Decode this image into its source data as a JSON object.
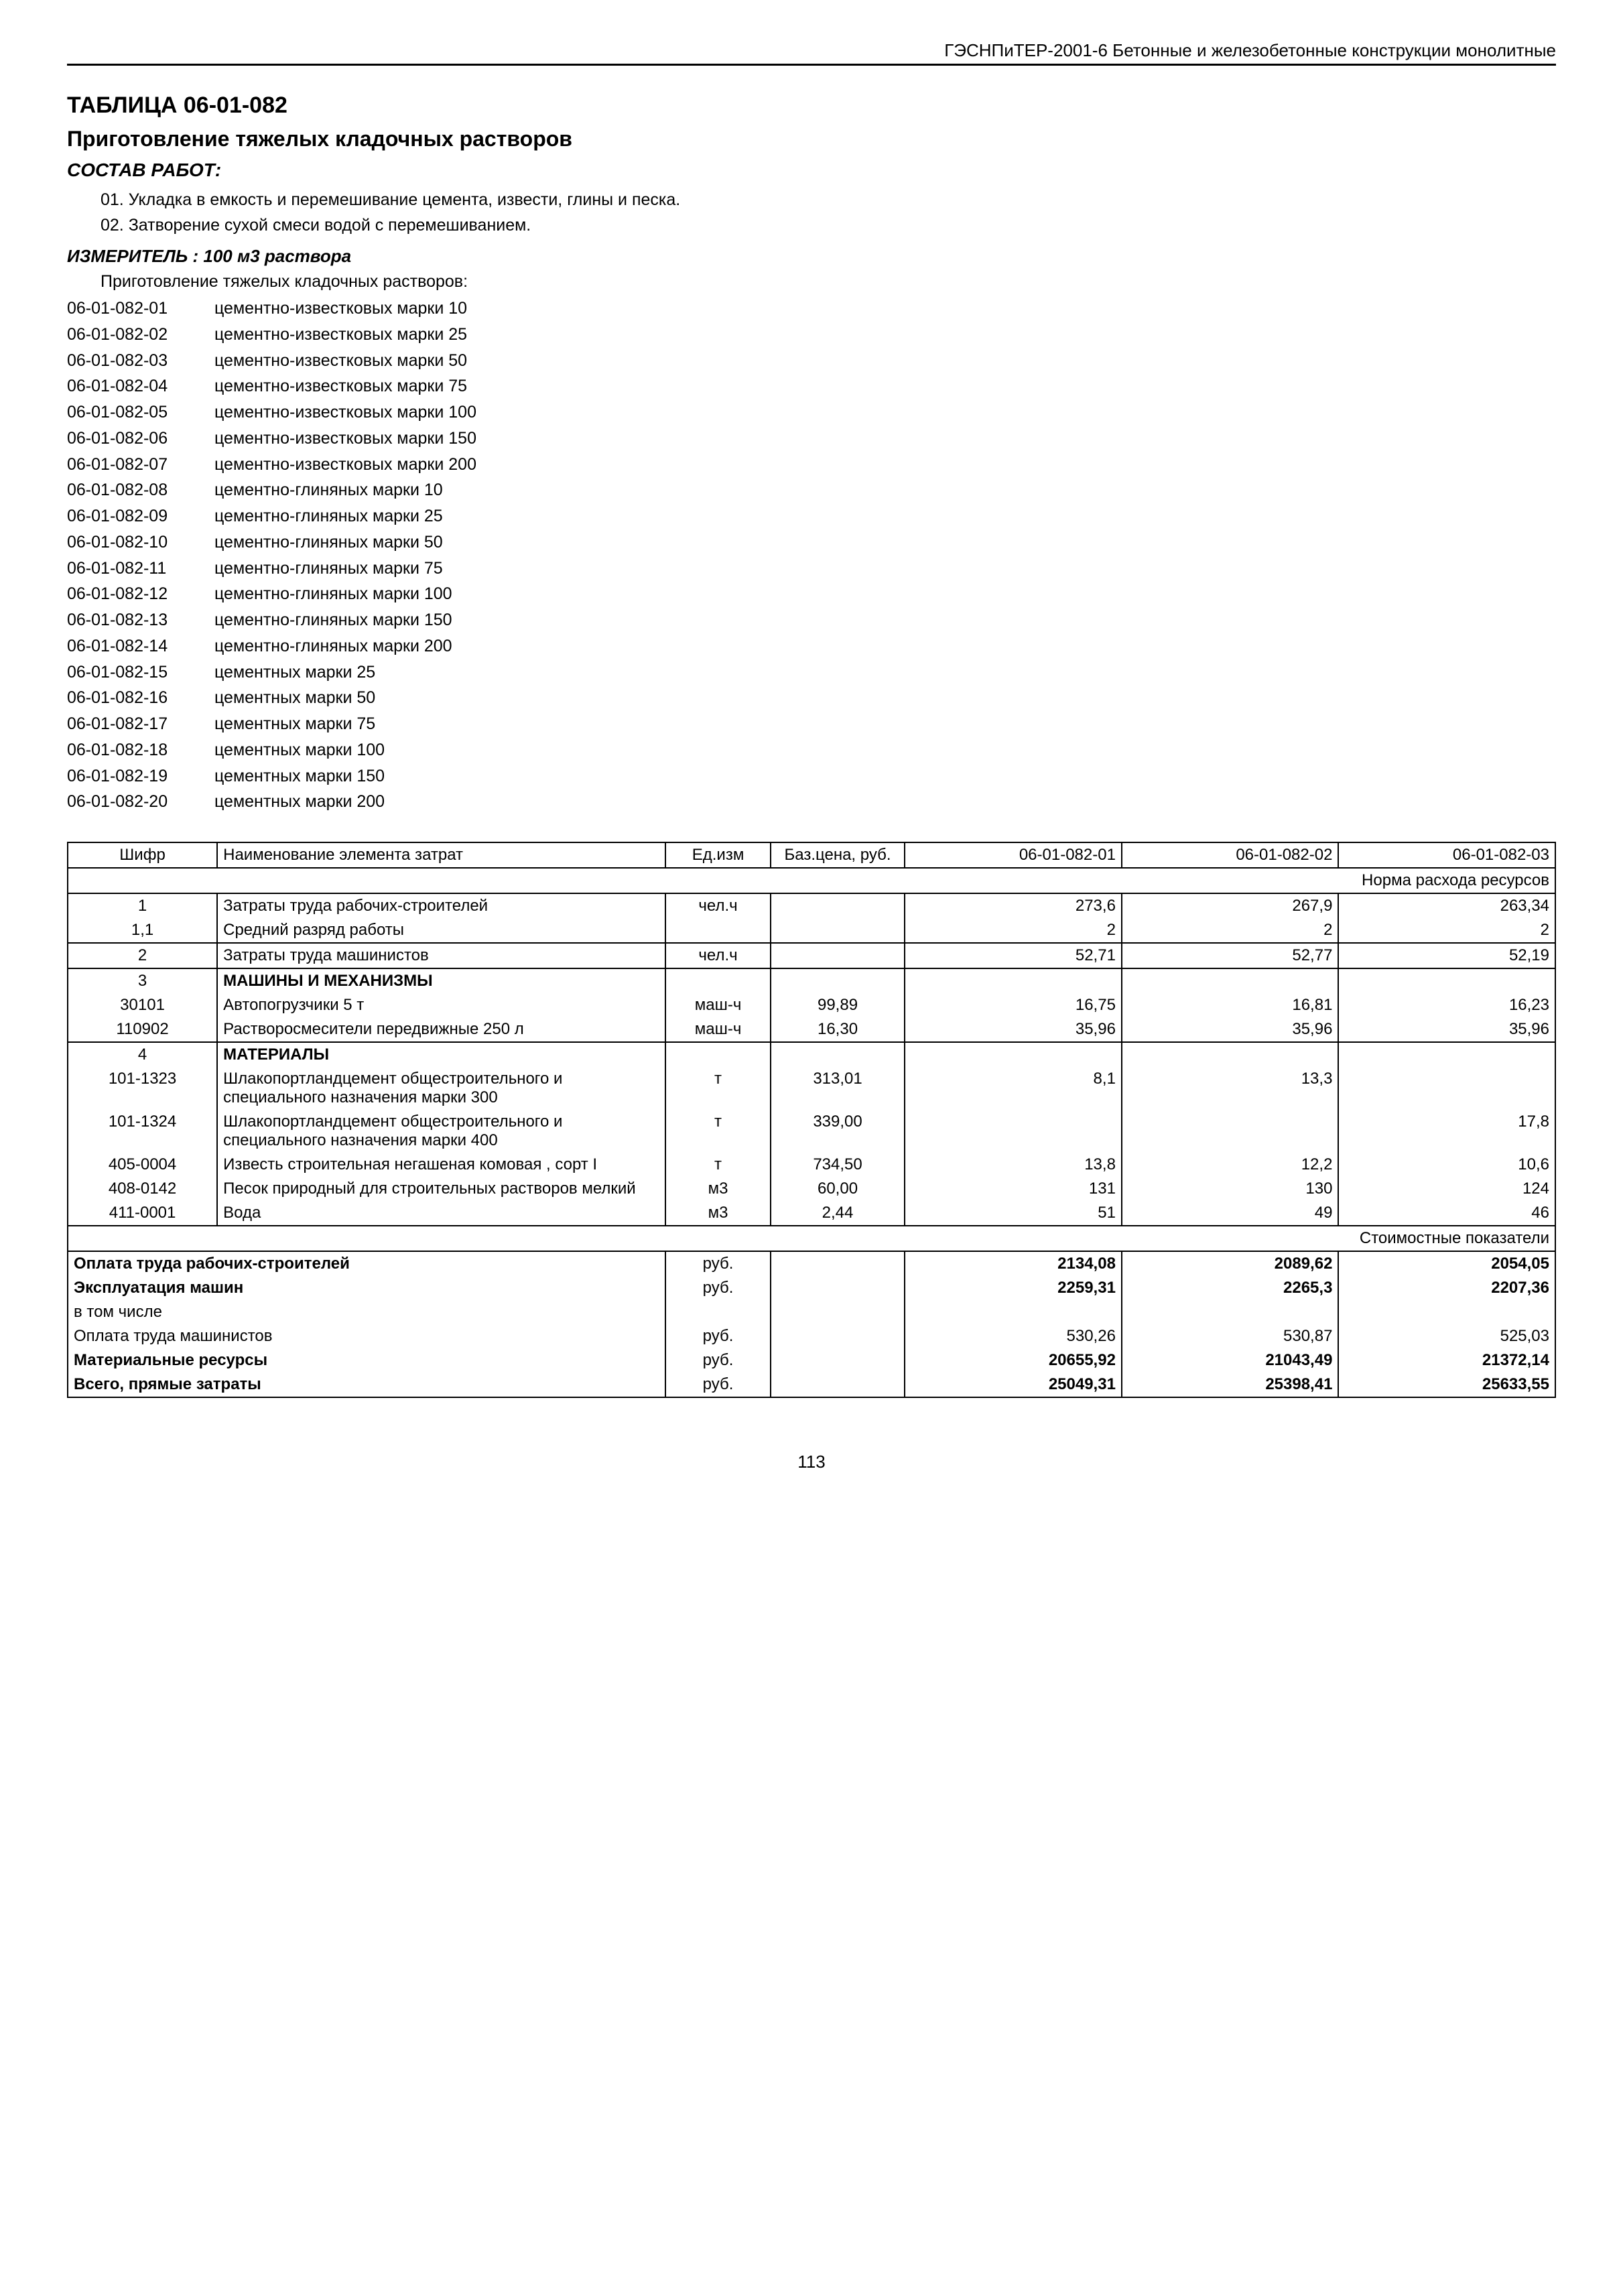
{
  "header": "ГЭСНПиТЕР-2001-6 Бетонные и железобетонные конструкции монолитные",
  "title": "ТАБЛИЦА 06-01-082",
  "subtitle": "Приготовление тяжелых кладочных растворов",
  "section_label": "СОСТАВ РАБОТ:",
  "works": [
    "01. Укладка в емкость и перемешивание цемента, извести, глины и песка.",
    "02. Затворение сухой смеси водой с перемешиванием."
  ],
  "measure": "ИЗМЕРИТЕЛЬ : 100 м3 раствора",
  "list_intro": "Приготовление тяжелых кладочных растворов:",
  "codes": [
    {
      "code": "06-01-082-01",
      "desc": "цементно-известковых марки 10"
    },
    {
      "code": "06-01-082-02",
      "desc": "цементно-известковых марки 25"
    },
    {
      "code": "06-01-082-03",
      "desc": "цементно-известковых марки 50"
    },
    {
      "code": "06-01-082-04",
      "desc": "цементно-известковых марки 75"
    },
    {
      "code": "06-01-082-05",
      "desc": "цементно-известковых марки 100"
    },
    {
      "code": "06-01-082-06",
      "desc": "цементно-известковых марки 150"
    },
    {
      "code": "06-01-082-07",
      "desc": "цементно-известковых марки 200"
    },
    {
      "code": "06-01-082-08",
      "desc": "цементно-глиняных марки 10"
    },
    {
      "code": "06-01-082-09",
      "desc": "цементно-глиняных марки 25"
    },
    {
      "code": "06-01-082-10",
      "desc": "цементно-глиняных марки 50"
    },
    {
      "code": "06-01-082-11",
      "desc": "цементно-глиняных марки 75"
    },
    {
      "code": "06-01-082-12",
      "desc": "цементно-глиняных марки 100"
    },
    {
      "code": "06-01-082-13",
      "desc": "цементно-глиняных марки 150"
    },
    {
      "code": "06-01-082-14",
      "desc": "цементно-глиняных марки 200"
    },
    {
      "code": "06-01-082-15",
      "desc": "цементных марки 25"
    },
    {
      "code": "06-01-082-16",
      "desc": "цементных марки 50"
    },
    {
      "code": "06-01-082-17",
      "desc": "цементных марки 75"
    },
    {
      "code": "06-01-082-18",
      "desc": "цементных марки 100"
    },
    {
      "code": "06-01-082-19",
      "desc": "цементных марки 150"
    },
    {
      "code": "06-01-082-20",
      "desc": "цементных марки 200"
    }
  ],
  "table": {
    "headers": {
      "shifr": "Шифр",
      "name": "Наименование элемента затрат",
      "unit": "Ед.изм",
      "price": "Баз.цена, руб.",
      "c1": "06-01-082-01",
      "c2": "06-01-082-02",
      "c3": "06-01-082-03",
      "norm": "Норма расхода ресурсов"
    },
    "rows": [
      {
        "shifr": "1",
        "name": "Затраты труда рабочих-строителей",
        "unit": "чел.ч",
        "price": "",
        "v1": "273,6",
        "v2": "267,9",
        "v3": "263,34",
        "topline": true
      },
      {
        "shifr": "1,1",
        "name": "Средний разряд работы",
        "unit": "",
        "price": "",
        "v1": "2",
        "v2": "2",
        "v3": "2"
      },
      {
        "shifr": "2",
        "name": "Затраты труда машинистов",
        "unit": "чел.ч",
        "price": "",
        "v1": "52,71",
        "v2": "52,77",
        "v3": "52,19",
        "topline": true,
        "botline": true
      },
      {
        "shifr": "3",
        "name": "МАШИНЫ И МЕХАНИЗМЫ",
        "unit": "",
        "price": "",
        "v1": "",
        "v2": "",
        "v3": "",
        "bold": true,
        "topline": true
      },
      {
        "shifr": "30101",
        "name": "Автопогрузчики 5 т",
        "unit": "маш-ч",
        "price": "99,89",
        "v1": "16,75",
        "v2": "16,81",
        "v3": "16,23"
      },
      {
        "shifr": "110902",
        "name": "Растворосмесители передвижные 250 л",
        "unit": "маш-ч",
        "price": "16,30",
        "v1": "35,96",
        "v2": "35,96",
        "v3": "35,96",
        "botline": true
      },
      {
        "shifr": "4",
        "name": "МАТЕРИАЛЫ",
        "unit": "",
        "price": "",
        "v1": "",
        "v2": "",
        "v3": "",
        "bold": true,
        "topline": true
      },
      {
        "shifr": "101-1323",
        "name": "Шлакопортландцемент общестроительного и специального назначения марки 300",
        "unit": "т",
        "price": "313,01",
        "v1": "8,1",
        "v2": "13,3",
        "v3": ""
      },
      {
        "shifr": "101-1324",
        "name": "Шлакопортландцемент общестроительного и специального назначения марки 400",
        "unit": "т",
        "price": "339,00",
        "v1": "",
        "v2": "",
        "v3": "17,8"
      },
      {
        "shifr": "405-0004",
        "name": "Известь строительная негашеная комовая , сорт I",
        "unit": "т",
        "price": "734,50",
        "v1": "13,8",
        "v2": "12,2",
        "v3": "10,6"
      },
      {
        "shifr": "408-0142",
        "name": "Песок природный для строительных растворов мелкий",
        "unit": "м3",
        "price": "60,00",
        "v1": "131",
        "v2": "130",
        "v3": "124"
      },
      {
        "shifr": "411-0001",
        "name": "Вода",
        "unit": "м3",
        "price": "2,44",
        "v1": "51",
        "v2": "49",
        "v3": "46",
        "botline": true
      }
    ],
    "cost_header": "Стоимостные показатели",
    "cost_rows": [
      {
        "name": "Оплата труда рабочих-строителей",
        "unit": "руб.",
        "v1": "2134,08",
        "v2": "2089,62",
        "v3": "2054,05",
        "bold": true
      },
      {
        "name": "Эксплуатация машин",
        "unit": "руб.",
        "v1": "2259,31",
        "v2": "2265,3",
        "v3": "2207,36",
        "bold": true
      },
      {
        "name": "в том числе",
        "unit": "",
        "v1": "",
        "v2": "",
        "v3": "",
        "bold": false
      },
      {
        "name": "Оплата труда машинистов",
        "unit": "руб.",
        "v1": "530,26",
        "v2": "530,87",
        "v3": "525,03",
        "bold": false
      },
      {
        "name": "Материальные ресурсы",
        "unit": "руб.",
        "v1": "20655,92",
        "v2": "21043,49",
        "v3": "21372,14",
        "bold": true
      },
      {
        "name": "Всего, прямые затраты",
        "unit": "руб.",
        "v1": "25049,31",
        "v2": "25398,41",
        "v3": "25633,55",
        "bold": true
      }
    ]
  },
  "page_num": "113"
}
